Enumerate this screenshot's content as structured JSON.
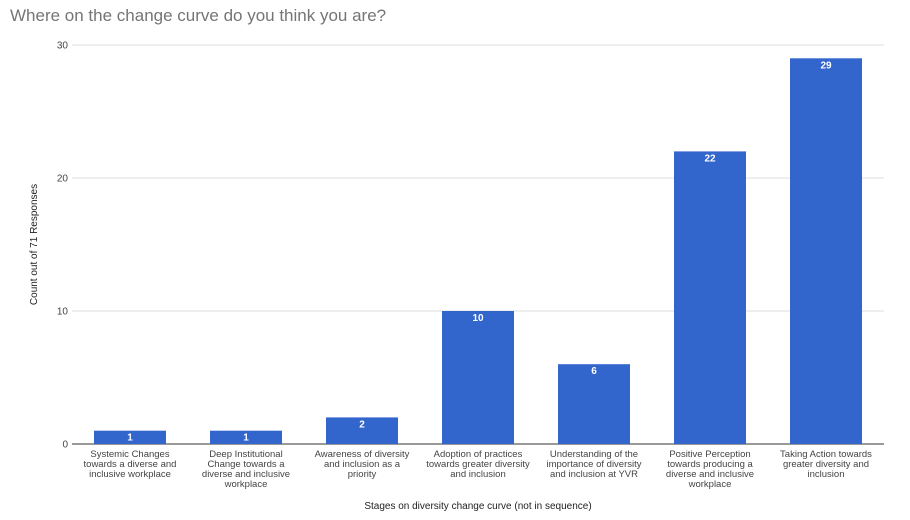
{
  "chart_data": {
    "type": "bar",
    "title": "Where on the change curve do you think you are?",
    "xlabel": "Stages on diversity change curve (not in sequence)",
    "ylabel": "Count out of 71 Responses",
    "ylim": [
      0,
      30
    ],
    "yticks": [
      0,
      10,
      20,
      30
    ],
    "grid": true,
    "legend": "none",
    "bar_color": "#3366cc",
    "categories": [
      [
        "Systemic Changes",
        "towards a diverse and",
        "inclusive workplace"
      ],
      [
        "Deep Institutional",
        "Change towards a",
        "diverse and inclusive",
        "workplace"
      ],
      [
        "Awareness of diversity",
        "and inclusion as a",
        "priority"
      ],
      [
        "Adoption of practices",
        "towards greater diversity",
        "and inclusion"
      ],
      [
        "Understanding of the",
        "importance of diversity",
        "and inclusion at YVR"
      ],
      [
        "Positive Perception",
        "towards producing a",
        "diverse and inclusive",
        "workplace"
      ],
      [
        "Taking Action towards",
        "greater diversity and",
        "inclusion"
      ]
    ],
    "values": [
      1,
      1,
      2,
      10,
      6,
      22,
      29
    ]
  }
}
